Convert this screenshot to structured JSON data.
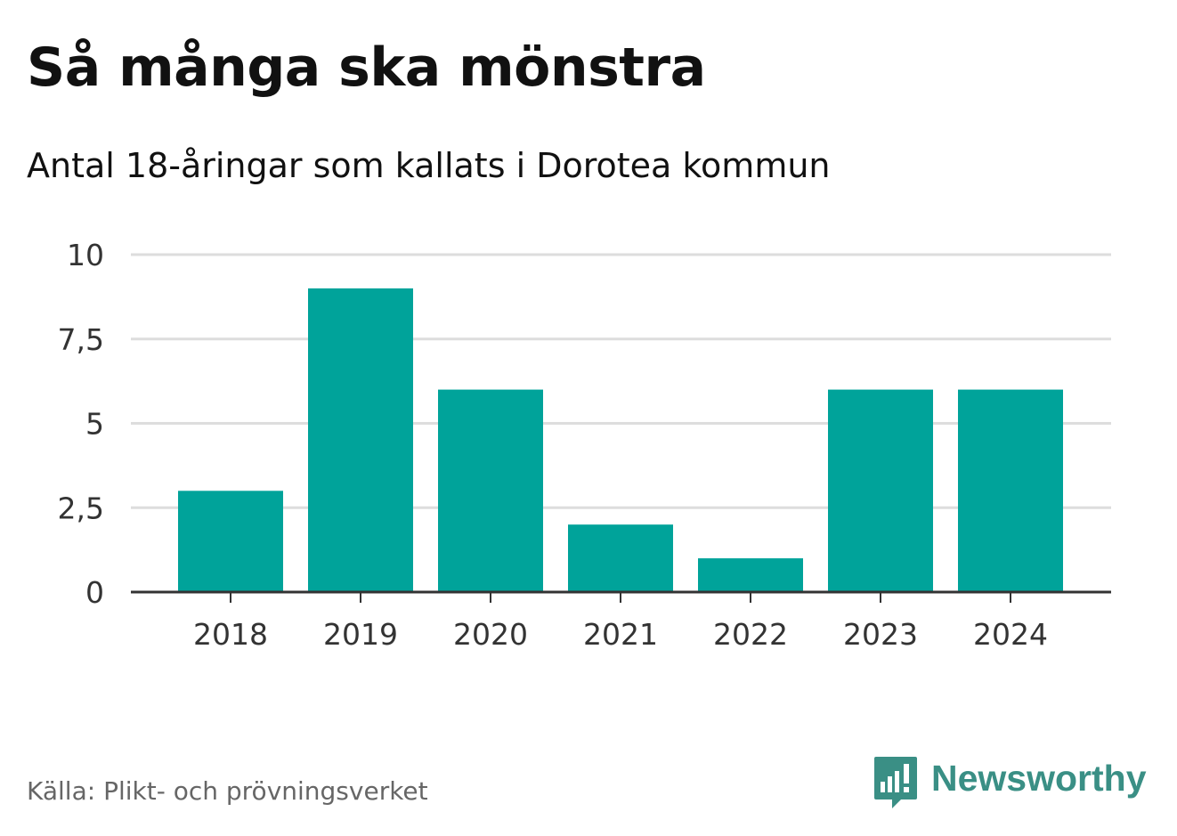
{
  "header": {
    "title": "Så många ska mönstra",
    "subtitle": "Antal 18-åringar som kallats i Dorotea kommun"
  },
  "footer": {
    "source": "Källa: Plikt- och prövningsverket",
    "brand": "Newsworthy",
    "brand_icon": "newsworthy-logo-icon",
    "brand_color": "#3a8f85"
  },
  "chart_data": {
    "type": "bar",
    "title": "Så många ska mönstra",
    "subtitle": "Antal 18-åringar som kallats i Dorotea kommun",
    "categories": [
      "2018",
      "2019",
      "2020",
      "2021",
      "2022",
      "2023",
      "2024"
    ],
    "values": [
      3,
      9,
      6,
      2,
      1,
      6,
      6
    ],
    "ylim": [
      0,
      10
    ],
    "yticks": [
      0,
      2.5,
      5,
      7.5,
      10
    ],
    "ytick_labels": [
      "0",
      "2,5",
      "5",
      "7,5",
      "10"
    ],
    "grid": true,
    "bar_color": "#00a39a",
    "gridline_color": "#dddddd",
    "axis_color": "#333333"
  }
}
